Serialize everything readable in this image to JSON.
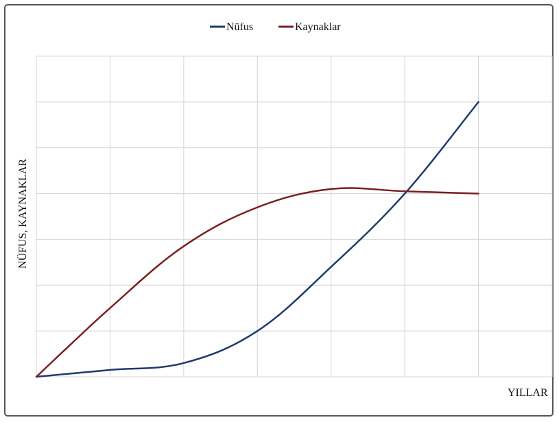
{
  "chart_data": {
    "type": "line",
    "title": "",
    "xlabel": "YILLAR",
    "ylabel": "NÜFUS, KAYNAKLAR",
    "legend": "top-center",
    "grid": true,
    "x_ticks_shown": false,
    "y_ticks_shown": false,
    "x": [
      0,
      1,
      2,
      3,
      4,
      5,
      6
    ],
    "xlim": [
      0,
      6
    ],
    "ylim": [
      0,
      7
    ],
    "series": [
      {
        "name": "Nüfus",
        "color": "#1f3a6e",
        "values": [
          0,
          0.15,
          0.3,
          1.0,
          2.4,
          4.0,
          6.0
        ]
      },
      {
        "name": "Kaynaklar",
        "color": "#7a1f1f",
        "values": [
          0,
          1.5,
          2.85,
          3.7,
          4.1,
          4.05,
          4.0
        ]
      }
    ]
  }
}
